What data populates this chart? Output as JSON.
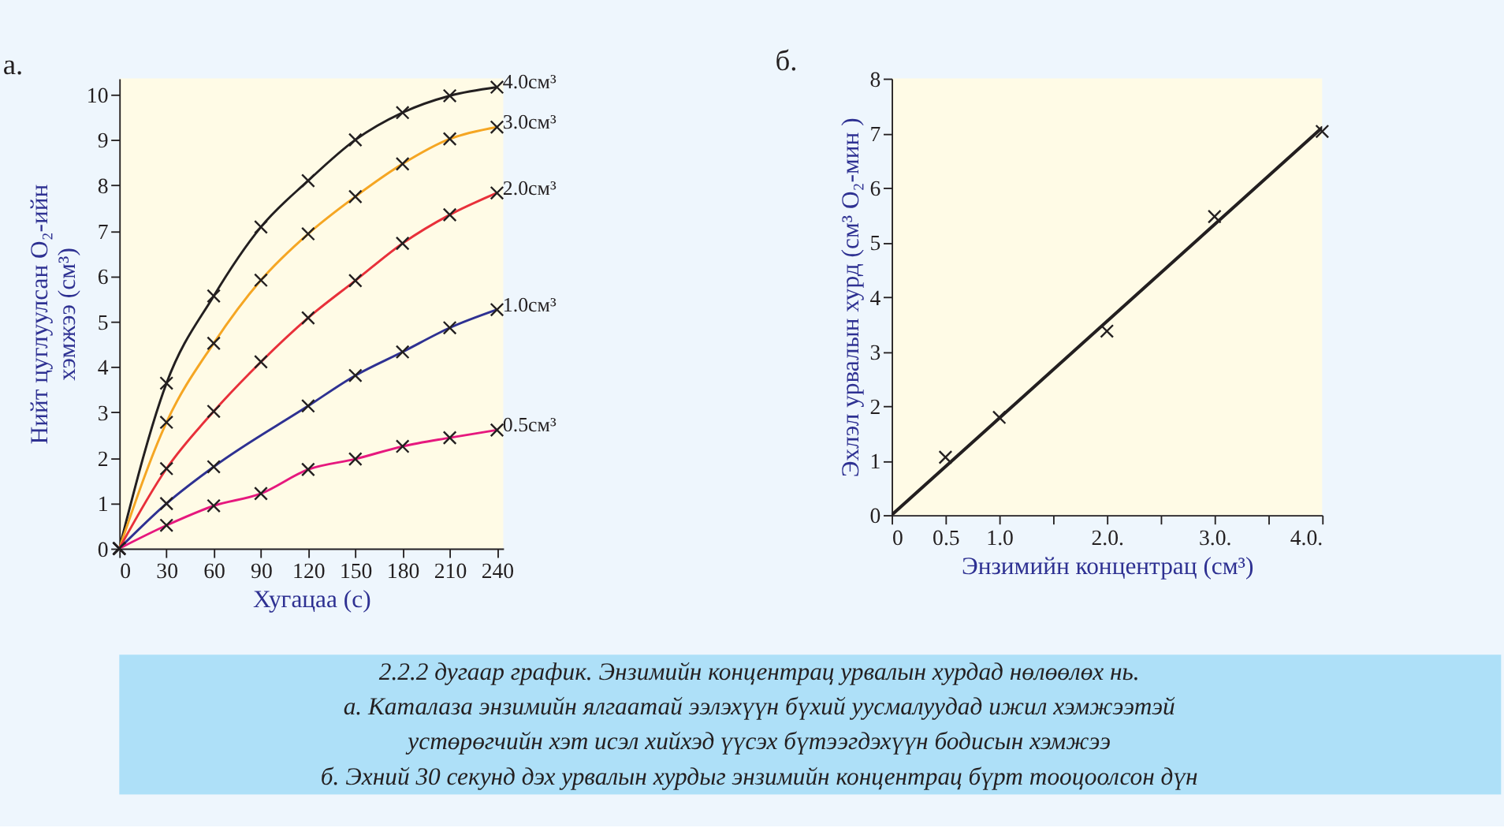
{
  "chart_data": [
    {
      "type": "line",
      "title": "а.",
      "xlabel": "Хугацаа (с)",
      "ylabel": "Нийт цуглуулсан O₂-ийн\nхэмжээ (см³)",
      "xlim": [
        0,
        244
      ],
      "ylim": [
        0,
        10.35
      ],
      "xticks": [
        0,
        30,
        60,
        90,
        120,
        150,
        180,
        210,
        240
      ],
      "yticks": [
        0,
        1,
        2,
        3,
        4,
        5,
        6,
        7,
        8,
        9,
        10
      ],
      "grid": false,
      "legend": false,
      "marker": "cross",
      "series": [
        {
          "name": "4.0см³",
          "color": "#231f20",
          "x": [
            0,
            30,
            60,
            90,
            120,
            150,
            180,
            210,
            240
          ],
          "values": [
            0,
            3.64,
            5.56,
            7.08,
            8.1,
            9.0,
            9.6,
            9.97,
            10.16
          ]
        },
        {
          "name": "3.0см³",
          "color": "#f5a623",
          "x": [
            0,
            30,
            60,
            90,
            120,
            150,
            180,
            210,
            240
          ],
          "values": [
            0,
            2.78,
            4.52,
            5.91,
            6.93,
            7.75,
            8.47,
            9.02,
            9.28
          ]
        },
        {
          "name": "2.0см³",
          "color": "#e8303a",
          "x": [
            0,
            30,
            60,
            90,
            120,
            150,
            180,
            210,
            240
          ],
          "values": [
            0,
            1.76,
            3.02,
            4.11,
            5.08,
            5.9,
            6.72,
            7.35,
            7.83
          ]
        },
        {
          "name": "1.0см³",
          "color": "#2e3192",
          "x": [
            0,
            30,
            60,
            120,
            150,
            180,
            210,
            240
          ],
          "values": [
            0,
            0.99,
            1.8,
            3.14,
            3.81,
            4.33,
            4.86,
            5.26
          ]
        },
        {
          "name": "0.5см³",
          "color": "#e6187e",
          "x": [
            0,
            30,
            60,
            90,
            120,
            150,
            180,
            210,
            240
          ],
          "values": [
            0,
            0.51,
            0.94,
            1.21,
            1.74,
            1.97,
            2.25,
            2.44,
            2.61
          ]
        }
      ],
      "annotations": [
        "2.2.2 дугаар график. Энзимийн концентрац урвалын хурдад нөлөөлөх нь.",
        "а. Каталаза энзимийн ялгаатай ээлэхүүн  бүхий уусмалуудад ижил хэмжээтэй",
        "устөрөгчийн хэт исэл хийхэд үүсэх бүтээгдэхүүн бодисын хэмжээ",
        "б. Эхний 30 секунд дэх урвалын хурдыг энзимийн концентрац бүрт тооцоолсон дүн"
      ]
    },
    {
      "type": "scatter",
      "title": "б.",
      "xlabel": "Энзимийн концентрац  (см³)",
      "ylabel": "Эхлэл урвалын хурд  (см³ O₂-мин )",
      "xlim": [
        0,
        4.0
      ],
      "ylim": [
        0,
        8
      ],
      "xticks": [
        0,
        0.5,
        {
          "value": 1,
          "label": "1.0"
        },
        {
          "value": 1.5,
          "label": null
        },
        {
          "value": 2,
          "label": "2.0."
        },
        {
          "value": 2.5,
          "label": null
        },
        {
          "value": 3,
          "label": "3.0."
        },
        {
          "value": 3.5,
          "label": null
        },
        {
          "value": 4,
          "label": "4.0."
        }
      ],
      "yticks": [
        0,
        1,
        2,
        3,
        4,
        5,
        6,
        7,
        8
      ],
      "grid": false,
      "legend": false,
      "series": [
        {
          "type": "scatter",
          "marker": "cross",
          "color": "#231f20",
          "x": [
            0.5,
            1.0,
            2.0,
            3.0,
            4.0
          ],
          "values": [
            1.06,
            1.79,
            3.37,
            5.47,
            7.03
          ]
        },
        {
          "type": "line",
          "marker": "none",
          "color": "#231f20",
          "x": [
            0,
            4.0
          ],
          "values": [
            0,
            7.1
          ]
        }
      ]
    }
  ]
}
